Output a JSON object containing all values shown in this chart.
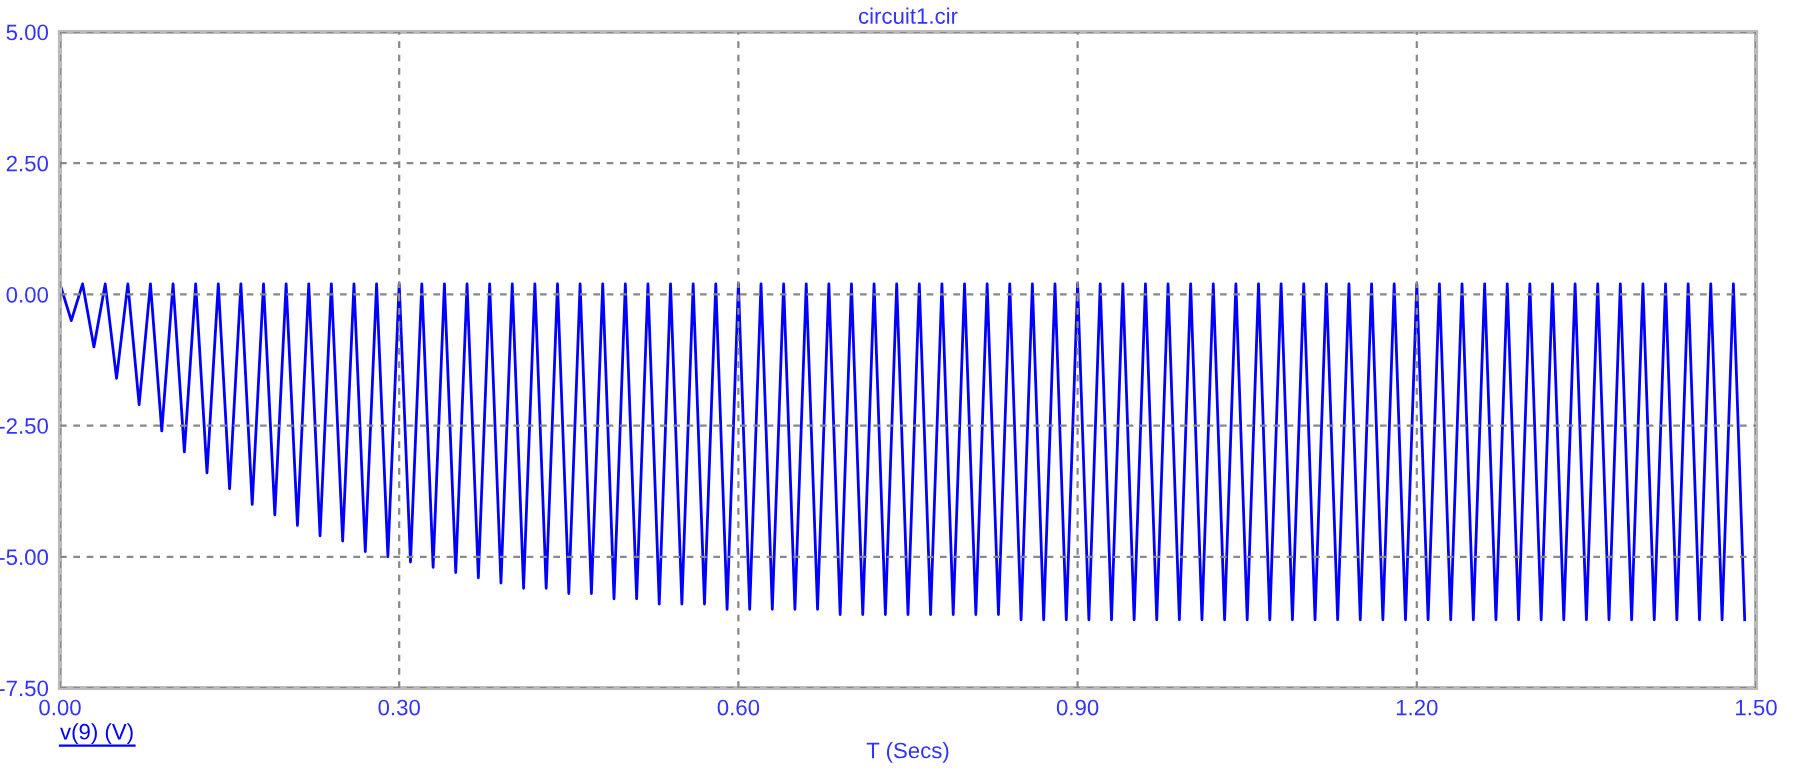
{
  "chart_data": {
    "type": "line",
    "title": "circuit1.cir",
    "xlabel": "T (Secs)",
    "x": [
      0,
      0.01,
      0.02,
      0.03,
      0.04,
      0.05,
      0.06,
      0.07,
      0.08,
      0.09,
      0.1,
      0.11,
      0.12,
      0.13,
      0.14,
      0.15,
      0.16,
      0.17,
      0.18,
      0.19,
      0.2,
      0.21,
      0.22,
      0.23,
      0.24,
      0.25,
      0.26,
      0.27,
      0.28,
      0.29,
      0.3,
      0.31,
      0.32,
      0.33,
      0.34,
      0.35,
      0.36,
      0.37,
      0.38,
      0.39,
      0.4,
      0.41,
      0.42,
      0.43,
      0.44,
      0.45,
      0.46,
      0.47,
      0.48,
      0.49,
      0.5,
      0.51,
      0.52,
      0.53,
      0.54,
      0.55,
      0.56,
      0.57,
      0.58,
      0.59,
      0.6,
      0.61,
      0.62,
      0.63,
      0.64,
      0.65,
      0.66,
      0.67,
      0.68,
      0.69,
      0.7,
      0.71,
      0.72,
      0.73,
      0.74,
      0.75,
      0.76,
      0.77,
      0.78,
      0.79,
      0.8,
      0.81,
      0.82,
      0.83,
      0.84,
      0.85,
      0.86,
      0.87,
      0.88,
      0.89,
      0.9,
      0.91,
      0.92,
      0.93,
      0.94,
      0.95,
      0.96,
      0.97,
      0.98,
      0.99,
      1.0,
      1.01,
      1.02,
      1.03,
      1.04,
      1.05,
      1.06,
      1.07,
      1.08,
      1.09,
      1.1,
      1.11,
      1.12,
      1.13,
      1.14,
      1.15,
      1.16,
      1.17,
      1.18,
      1.19,
      1.2,
      1.21,
      1.22,
      1.23,
      1.24,
      1.25,
      1.26,
      1.27,
      1.28,
      1.29,
      1.3,
      1.31,
      1.32,
      1.33,
      1.34,
      1.35,
      1.36,
      1.37,
      1.38,
      1.39,
      1.4,
      1.41,
      1.42,
      1.43,
      1.44,
      1.45,
      1.46,
      1.47,
      1.48,
      1.49
    ],
    "series": [
      {
        "name": "v(9) (V)",
        "color": "#0000ff",
        "values": [
          0.2,
          -0.5,
          0.2,
          -1.0,
          0.2,
          -1.6,
          0.2,
          -2.1,
          0.2,
          -2.6,
          0.2,
          -3.0,
          0.2,
          -3.4,
          0.2,
          -3.7,
          0.2,
          -4.0,
          0.2,
          -4.2,
          0.2,
          -4.4,
          0.2,
          -4.6,
          0.2,
          -4.7,
          0.2,
          -4.9,
          0.2,
          -5.0,
          0.2,
          -5.1,
          0.2,
          -5.2,
          0.2,
          -5.3,
          0.2,
          -5.4,
          0.2,
          -5.5,
          0.2,
          -5.6,
          0.2,
          -5.6,
          0.2,
          -5.7,
          0.2,
          -5.7,
          0.2,
          -5.8,
          0.2,
          -5.8,
          0.2,
          -5.9,
          0.2,
          -5.9,
          0.2,
          -5.9,
          0.2,
          -6.0,
          0.2,
          -6.0,
          0.2,
          -6.0,
          0.2,
          -6.0,
          0.2,
          -6.0,
          0.2,
          -6.1,
          0.2,
          -6.1,
          0.2,
          -6.1,
          0.2,
          -6.1,
          0.2,
          -6.1,
          0.2,
          -6.1,
          0.2,
          -6.1,
          0.2,
          -6.1,
          0.2,
          -6.2,
          0.2,
          -6.2,
          0.2,
          -6.2,
          0.2,
          -6.2,
          0.2,
          -6.2,
          0.2,
          -6.2,
          0.2,
          -6.2,
          0.2,
          -6.2,
          0.2,
          -6.2,
          0.2,
          -6.2,
          0.2,
          -6.2,
          0.2,
          -6.2,
          0.2,
          -6.2,
          0.2,
          -6.2,
          0.2,
          -6.2,
          0.2,
          -6.2,
          0.2,
          -6.2,
          0.2,
          -6.2,
          0.2,
          -6.2,
          0.2,
          -6.2,
          0.2,
          -6.2,
          0.2,
          -6.2,
          0.2,
          -6.2,
          0.2,
          -6.2,
          0.2,
          -6.2,
          0.2,
          -6.2,
          0.2,
          -6.2,
          0.2,
          -6.2,
          0.2,
          -6.2,
          0.2,
          -6.2,
          0.2,
          -6.2,
          0.2,
          -6.2,
          0.2,
          -6.2
        ]
      }
    ],
    "xlim": [
      0,
      1.5
    ],
    "ylim": [
      -7.5,
      5
    ],
    "xticks": [
      {
        "value": 0,
        "label": "0.00"
      },
      {
        "value": 0.3,
        "label": "0.30"
      },
      {
        "value": 0.6,
        "label": "0.60"
      },
      {
        "value": 0.9,
        "label": "0.90"
      },
      {
        "value": 1.2,
        "label": "1.20"
      },
      {
        "value": 1.5,
        "label": "1.50"
      }
    ],
    "yticks": [
      {
        "value": -7.5,
        "label": "-7.50"
      },
      {
        "value": -5,
        "label": "-5.00"
      },
      {
        "value": -2.5,
        "label": "-2.50"
      },
      {
        "value": 0,
        "label": "0.00"
      },
      {
        "value": 2.5,
        "label": "2.50"
      },
      {
        "value": 5,
        "label": "5.00"
      }
    ],
    "grid": true,
    "line_style": "solid",
    "marker": "none"
  }
}
